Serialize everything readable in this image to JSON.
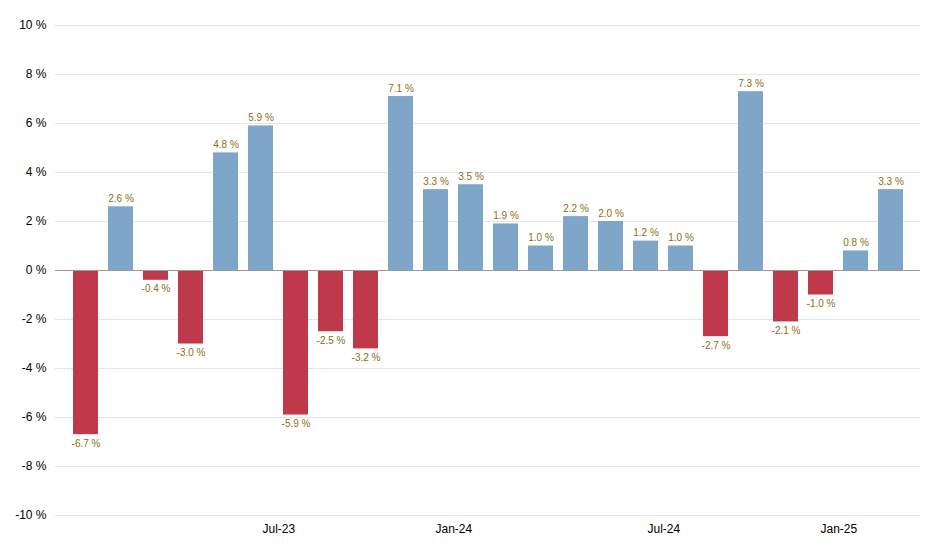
{
  "chart_data": {
    "type": "bar",
    "categories": [
      null,
      null,
      null,
      null,
      null,
      "Jul-23",
      null,
      null,
      null,
      null,
      "Jan-24",
      null,
      null,
      null,
      null,
      null,
      "Jul-24",
      null,
      null,
      null,
      null,
      "Jan-25",
      null,
      null
    ],
    "values": [
      -6.7,
      2.6,
      -0.4,
      -3.0,
      4.8,
      5.9,
      -5.9,
      -2.5,
      -3.2,
      7.1,
      3.3,
      3.5,
      1.9,
      1.0,
      2.2,
      2.0,
      1.2,
      1.0,
      -2.7,
      7.3,
      -2.1,
      -1.0,
      0.8,
      3.3
    ],
    "value_labels": [
      "-6.7 %",
      "2.6 %",
      "-0.4 %",
      "-3.0 %",
      "4.8 %",
      "5.9 %",
      "-5.9 %",
      "-2.5 %",
      "-3.2 %",
      "7.1 %",
      "3.3 %",
      "3.5 %",
      "1.9 %",
      "1.0 %",
      "2.2 %",
      "2.0 %",
      "1.2 %",
      "1.0 %",
      "-2.7 %",
      "7.3 %",
      "-2.1 %",
      "-1.0 %",
      "0.8 %",
      "3.3 %"
    ],
    "colors": [
      "#c0394b",
      "#7ea6c8",
      "#c0394b",
      "#c0394b",
      "#7ea6c8",
      "#7ea6c8",
      "#c0394b",
      "#c0394b",
      "#c0394b",
      "#7ea6c8",
      "#7ea6c8",
      "#7ea6c8",
      "#7ea6c8",
      "#7ea6c8",
      "#7ea6c8",
      "#7ea6c8",
      "#7ea6c8",
      "#7ea6c8",
      "#c0394b",
      "#7ea6c8",
      "#c0394b",
      "#c0394b",
      "#7ea6c8",
      "#7ea6c8"
    ],
    "ylim": [
      -10,
      10
    ],
    "yticks": [
      {
        "value": -10,
        "label": "-10 %"
      },
      {
        "value": -8,
        "label": "-8 %"
      },
      {
        "value": -6,
        "label": "-6 %"
      },
      {
        "value": -4,
        "label": "-4 %"
      },
      {
        "value": -2,
        "label": "-2 %"
      },
      {
        "value": 0,
        "label": "0 %"
      },
      {
        "value": 2,
        "label": "2 %"
      },
      {
        "value": 4,
        "label": "4 %"
      },
      {
        "value": 6,
        "label": "6 %"
      },
      {
        "value": 8,
        "label": "8 %"
      },
      {
        "value": 10,
        "label": "10 %"
      }
    ],
    "grid": true,
    "data_labels": true
  }
}
